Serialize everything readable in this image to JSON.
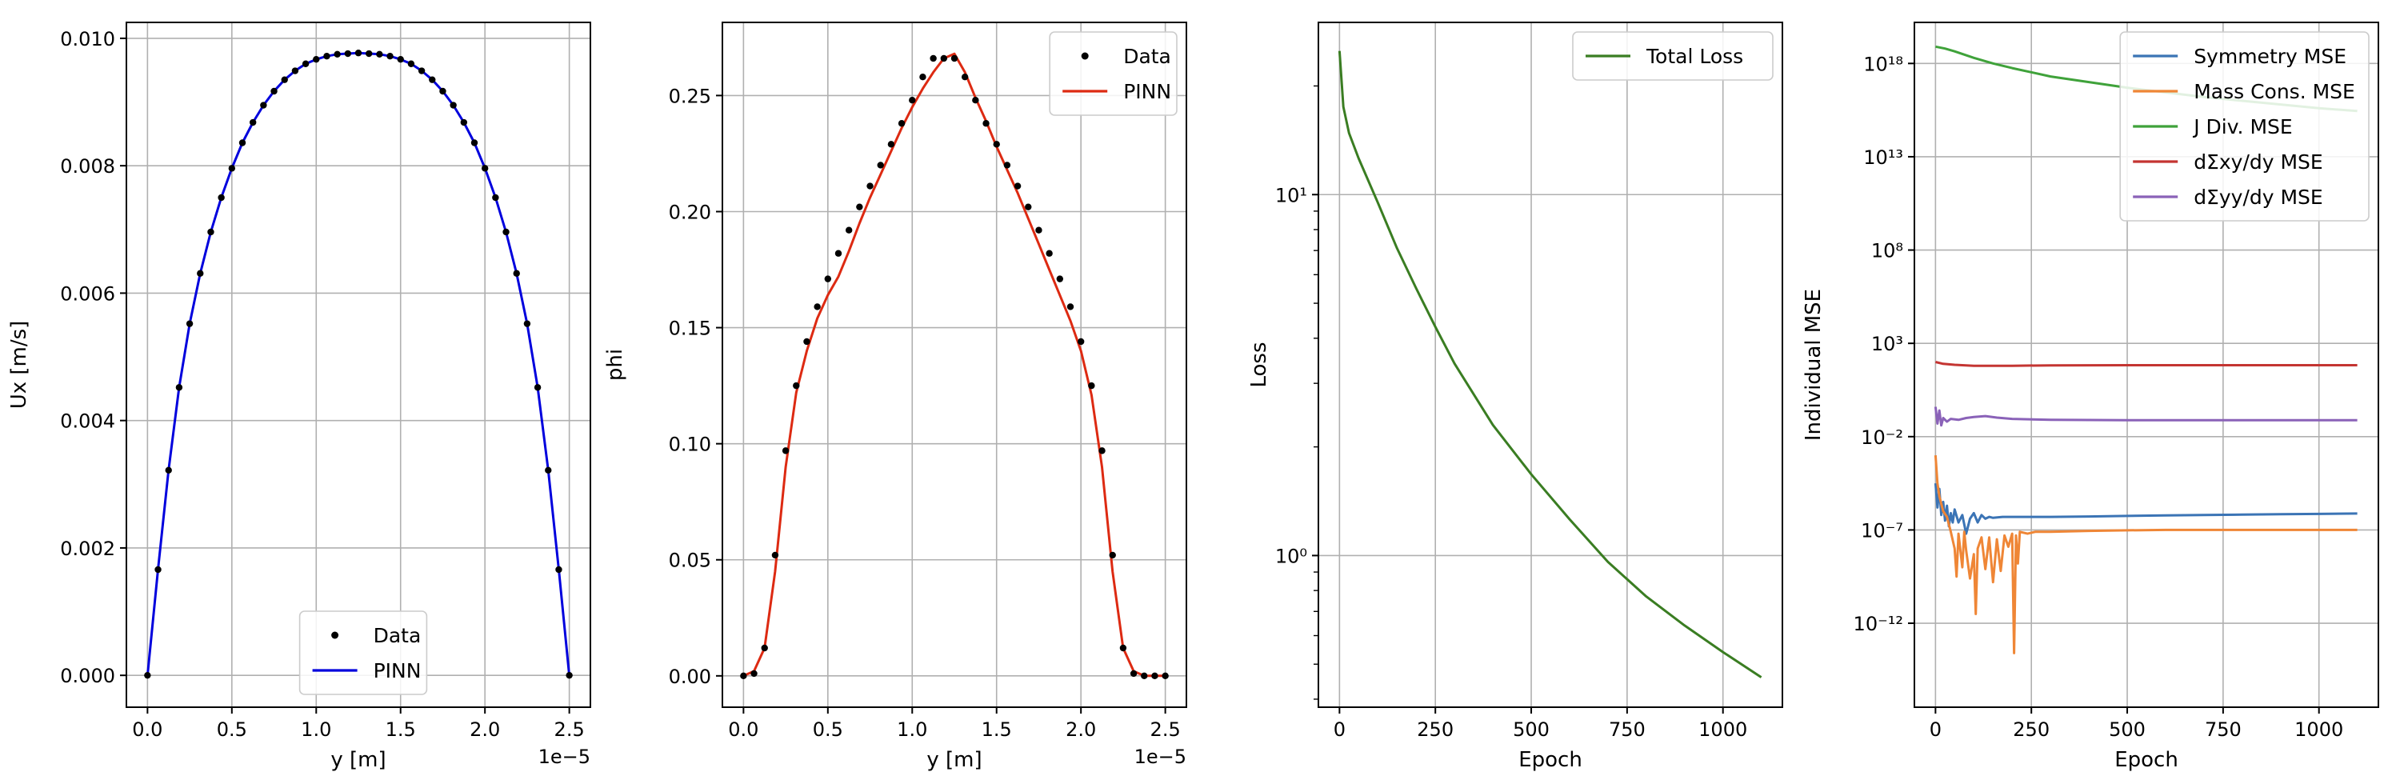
{
  "chart_data": [
    {
      "type": "line",
      "xlabel": "y [m]",
      "ylabel": "Ux [m/s]",
      "x_offset_label": "1e−5",
      "xlim": [
        -0.125,
        2.625
      ],
      "ylim": [
        -0.0005,
        0.01025
      ],
      "grid": true,
      "legend_position": "lower-center",
      "x_ticks": [
        0.0,
        0.5,
        1.0,
        1.5,
        2.0,
        2.5
      ],
      "x_tick_labels": [
        "0.0",
        "0.5",
        "1.0",
        "1.5",
        "2.0",
        "2.5"
      ],
      "y_ticks": [
        0.0,
        0.002,
        0.004,
        0.006,
        0.008,
        0.01
      ],
      "y_tick_labels": [
        "0.000",
        "0.002",
        "0.004",
        "0.006",
        "0.008",
        "0.010"
      ],
      "series": [
        {
          "name": "Data",
          "kind": "points",
          "color": "#000000",
          "x": [
            0.0,
            0.0625,
            0.125,
            0.1875,
            0.25,
            0.3125,
            0.375,
            0.4375,
            0.5,
            0.5625,
            0.625,
            0.6875,
            0.75,
            0.8125,
            0.875,
            0.9375,
            1.0,
            1.0625,
            1.125,
            1.1875,
            1.25,
            1.3125,
            1.375,
            1.4375,
            1.5,
            1.5625,
            1.625,
            1.6875,
            1.75,
            1.8125,
            1.875,
            1.9375,
            2.0,
            2.0625,
            2.125,
            2.1875,
            2.25,
            2.3125,
            2.375,
            2.4375,
            2.5
          ],
          "y": [
            0.0,
            0.00166,
            0.00322,
            0.00452,
            0.00552,
            0.00631,
            0.00696,
            0.0075,
            0.00796,
            0.00836,
            0.00868,
            0.00895,
            0.00917,
            0.00935,
            0.00949,
            0.0096,
            0.00967,
            0.00972,
            0.00975,
            0.00976,
            0.00977,
            0.00976,
            0.00975,
            0.00972,
            0.00967,
            0.0096,
            0.00949,
            0.00935,
            0.00917,
            0.00895,
            0.00868,
            0.00836,
            0.00796,
            0.0075,
            0.00696,
            0.00631,
            0.00552,
            0.00452,
            0.00322,
            0.00166,
            0.0
          ]
        },
        {
          "name": "PINN",
          "kind": "line",
          "color": "#0000dd",
          "x": [
            0.0,
            0.0625,
            0.125,
            0.1875,
            0.25,
            0.3125,
            0.375,
            0.4375,
            0.5,
            0.5625,
            0.625,
            0.6875,
            0.75,
            0.8125,
            0.875,
            0.9375,
            1.0,
            1.0625,
            1.125,
            1.1875,
            1.25,
            1.3125,
            1.375,
            1.4375,
            1.5,
            1.5625,
            1.625,
            1.6875,
            1.75,
            1.8125,
            1.875,
            1.9375,
            2.0,
            2.0625,
            2.125,
            2.1875,
            2.25,
            2.3125,
            2.375,
            2.4375,
            2.5
          ],
          "y": [
            0.0,
            0.00166,
            0.00322,
            0.00452,
            0.00552,
            0.00631,
            0.00696,
            0.0075,
            0.00796,
            0.00836,
            0.00868,
            0.00895,
            0.00917,
            0.00935,
            0.00949,
            0.0096,
            0.00967,
            0.00972,
            0.00975,
            0.00976,
            0.00977,
            0.00976,
            0.00975,
            0.00972,
            0.00967,
            0.0096,
            0.00949,
            0.00935,
            0.00917,
            0.00895,
            0.00868,
            0.00836,
            0.00796,
            0.0075,
            0.00696,
            0.00631,
            0.00552,
            0.00452,
            0.00322,
            0.00166,
            0.0
          ]
        }
      ]
    },
    {
      "type": "line",
      "xlabel": "y [m]",
      "ylabel": "phi",
      "x_offset_label": "1e−5",
      "xlim": [
        -0.125,
        2.625
      ],
      "ylim": [
        -0.0135,
        0.2815
      ],
      "grid": true,
      "legend_position": "upper-right",
      "x_ticks": [
        0.0,
        0.5,
        1.0,
        1.5,
        2.0,
        2.5
      ],
      "x_tick_labels": [
        "0.0",
        "0.5",
        "1.0",
        "1.5",
        "2.0",
        "2.5"
      ],
      "y_ticks": [
        0.0,
        0.05,
        0.1,
        0.15,
        0.2,
        0.25
      ],
      "y_tick_labels": [
        "0.00",
        "0.05",
        "0.10",
        "0.15",
        "0.20",
        "0.25"
      ],
      "series": [
        {
          "name": "Data",
          "kind": "points",
          "color": "#000000",
          "x": [
            0.0,
            0.0625,
            0.125,
            0.1875,
            0.25,
            0.3125,
            0.375,
            0.4375,
            0.5,
            0.5625,
            0.625,
            0.6875,
            0.75,
            0.8125,
            0.875,
            0.9375,
            1.0,
            1.0625,
            1.125,
            1.1875,
            1.25,
            1.3125,
            1.375,
            1.4375,
            1.5,
            1.5625,
            1.625,
            1.6875,
            1.75,
            1.8125,
            1.875,
            1.9375,
            2.0,
            2.0625,
            2.125,
            2.1875,
            2.25,
            2.3125,
            2.375,
            2.4375,
            2.5
          ],
          "y": [
            0.0,
            0.001,
            0.012,
            0.052,
            0.097,
            0.125,
            0.144,
            0.159,
            0.171,
            0.182,
            0.192,
            0.202,
            0.211,
            0.22,
            0.229,
            0.238,
            0.248,
            0.258,
            0.266,
            0.266,
            0.266,
            0.258,
            0.248,
            0.238,
            0.229,
            0.22,
            0.211,
            0.202,
            0.192,
            0.182,
            0.171,
            0.159,
            0.144,
            0.125,
            0.097,
            0.052,
            0.012,
            0.001,
            0.0,
            0.0,
            0.0
          ]
        },
        {
          "name": "PINN",
          "kind": "line",
          "color": "#dd2a12",
          "x": [
            0.0,
            0.0625,
            0.125,
            0.1875,
            0.25,
            0.3125,
            0.375,
            0.4375,
            0.5,
            0.5625,
            0.625,
            0.6875,
            0.75,
            0.8125,
            0.875,
            0.9375,
            1.0,
            1.0625,
            1.125,
            1.1875,
            1.25,
            1.3125,
            1.375,
            1.4375,
            1.5,
            1.5625,
            1.625,
            1.6875,
            1.75,
            1.8125,
            1.875,
            1.9375,
            2.0,
            2.0625,
            2.125,
            2.1875,
            2.25,
            2.3125,
            2.375,
            2.4375,
            2.5
          ],
          "y": [
            0.0,
            0.002,
            0.012,
            0.045,
            0.09,
            0.122,
            0.14,
            0.154,
            0.164,
            0.172,
            0.183,
            0.195,
            0.206,
            0.216,
            0.226,
            0.236,
            0.245,
            0.253,
            0.26,
            0.266,
            0.268,
            0.26,
            0.249,
            0.239,
            0.228,
            0.218,
            0.208,
            0.197,
            0.186,
            0.175,
            0.164,
            0.153,
            0.14,
            0.121,
            0.09,
            0.045,
            0.012,
            0.002,
            0.0,
            0.0,
            0.0
          ]
        }
      ]
    },
    {
      "type": "line",
      "xlabel": "Epoch",
      "ylabel": "Loss",
      "y_scale": "log",
      "xlim": [
        -55,
        1155
      ],
      "ylim": [
        0.38,
        30.0
      ],
      "grid": true,
      "legend_position": "upper-right",
      "x_ticks": [
        0,
        250,
        500,
        750,
        1000
      ],
      "x_tick_labels": [
        "0",
        "250",
        "500",
        "750",
        "1000"
      ],
      "y_ticks": [
        1,
        10
      ],
      "y_tick_labels": [
        "10⁰",
        "10¹"
      ],
      "series": [
        {
          "name": "Total Loss",
          "kind": "line",
          "color": "#3a7d22",
          "x": [
            0,
            10,
            25,
            50,
            100,
            150,
            200,
            250,
            300,
            400,
            500,
            600,
            700,
            800,
            900,
            1000,
            1100
          ],
          "y": [
            25.0,
            17.5,
            14.8,
            12.6,
            9.5,
            7.1,
            5.5,
            4.3,
            3.4,
            2.3,
            1.68,
            1.26,
            0.96,
            0.77,
            0.64,
            0.54,
            0.46
          ]
        }
      ]
    },
    {
      "type": "line",
      "xlabel": "Epoch",
      "ylabel": "Individual MSE",
      "y_scale": "log",
      "xlim": [
        -55,
        1155
      ],
      "ylim_exp": [
        -16.5,
        20.2
      ],
      "grid": true,
      "legend_position": "upper-right",
      "x_ticks": [
        0,
        250,
        500,
        750,
        1000
      ],
      "x_tick_labels": [
        "0",
        "250",
        "500",
        "750",
        "1000"
      ],
      "y_tick_exponents": [
        -12,
        -7,
        -2,
        3,
        8,
        13,
        18
      ],
      "y_tick_labels": [
        "10⁻¹²",
        "10⁻⁷",
        "10⁻²",
        "10³",
        "10⁸",
        "10¹³",
        "10¹⁸"
      ],
      "series": [
        {
          "name": "Symmetry MSE",
          "kind": "line",
          "color": "#3b74b5",
          "x": [
            0,
            5,
            10,
            15,
            20,
            25,
            30,
            35,
            40,
            45,
            50,
            60,
            70,
            80,
            90,
            100,
            110,
            120,
            130,
            140,
            150,
            175,
            200,
            300,
            400,
            500,
            600,
            700,
            800,
            900,
            1000,
            1100
          ],
          "log10_y": [
            -4.5,
            -5.8,
            -4.8,
            -6.2,
            -5.5,
            -6.5,
            -5.7,
            -6.8,
            -6.1,
            -6.6,
            -5.9,
            -6.6,
            -6.2,
            -7.2,
            -6.4,
            -6.1,
            -6.6,
            -6.2,
            -6.4,
            -6.3,
            -6.35,
            -6.3,
            -6.3,
            -6.3,
            -6.28,
            -6.25,
            -6.22,
            -6.2,
            -6.18,
            -6.16,
            -6.14,
            -6.12
          ]
        },
        {
          "name": "Mass Cons. MSE",
          "kind": "line",
          "color": "#ef8636",
          "x": [
            0,
            5,
            10,
            20,
            30,
            40,
            50,
            55,
            60,
            70,
            75,
            80,
            90,
            100,
            105,
            110,
            120,
            130,
            140,
            150,
            160,
            170,
            180,
            190,
            200,
            205,
            210,
            215,
            220,
            240,
            260,
            300,
            400,
            500,
            600,
            700,
            800,
            900,
            1000,
            1100
          ],
          "log10_y": [
            -3.0,
            -4.5,
            -5.2,
            -6.0,
            -6.3,
            -7.1,
            -8.0,
            -9.5,
            -7.2,
            -9.0,
            -7.1,
            -8.1,
            -9.6,
            -8.3,
            -11.5,
            -8.0,
            -7.4,
            -9.1,
            -7.4,
            -9.8,
            -7.5,
            -9.2,
            -7.3,
            -7.9,
            -7.2,
            -13.6,
            -7.3,
            -8.8,
            -7.1,
            -7.2,
            -7.1,
            -7.1,
            -7.05,
            -7.02,
            -7.0,
            -7.0,
            -7.0,
            -7.0,
            -7.0,
            -7.0
          ]
        },
        {
          "name": "J Div. MSE",
          "kind": "line",
          "color": "#3fa23a",
          "x": [
            0,
            25,
            50,
            100,
            150,
            200,
            300,
            400,
            500,
            600,
            700,
            800,
            900,
            1000,
            1100
          ],
          "log10_y": [
            18.9,
            18.8,
            18.65,
            18.3,
            18.0,
            17.75,
            17.3,
            17.0,
            16.7,
            16.45,
            16.2,
            16.0,
            15.8,
            15.6,
            15.45
          ]
        },
        {
          "name": "dΣxy/dy MSE",
          "kind": "line",
          "color": "#c43532",
          "x": [
            0,
            20,
            50,
            100,
            200,
            300,
            500,
            700,
            900,
            1100
          ],
          "log10_y": [
            2.0,
            1.9,
            1.85,
            1.8,
            1.8,
            1.82,
            1.83,
            1.83,
            1.83,
            1.83
          ]
        },
        {
          "name": "dΣyy/dy MSE",
          "kind": "line",
          "color": "#8a62b8",
          "x": [
            0,
            5,
            10,
            15,
            20,
            30,
            40,
            60,
            80,
            100,
            130,
            160,
            200,
            300,
            500,
            700,
            900,
            1100
          ],
          "log10_y": [
            -0.4,
            -1.3,
            -0.6,
            -1.4,
            -1.0,
            -1.2,
            -1.05,
            -1.1,
            -1.0,
            -0.95,
            -0.9,
            -0.98,
            -1.05,
            -1.1,
            -1.12,
            -1.12,
            -1.12,
            -1.12
          ]
        }
      ]
    }
  ]
}
